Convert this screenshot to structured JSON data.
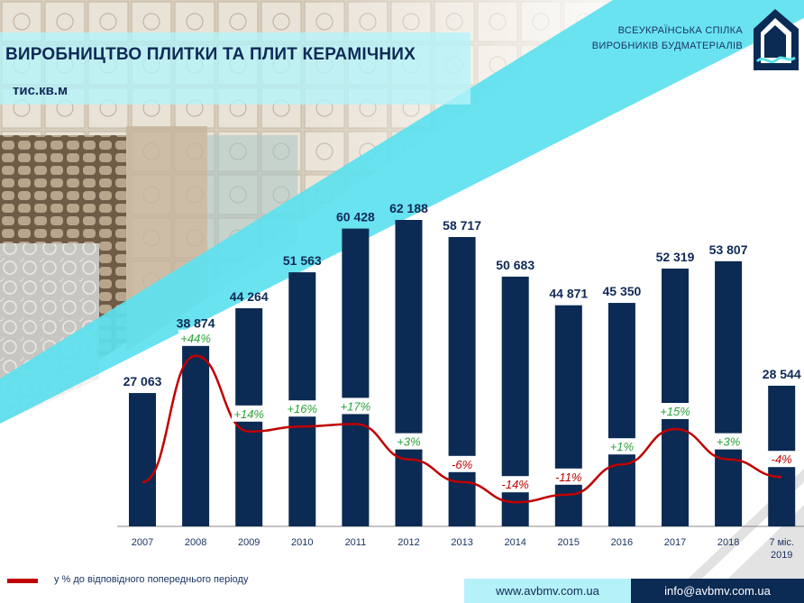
{
  "header": {
    "title": "ВИРОБНИЦТВО ПЛИТКИ ТА ПЛИТ КЕРАМІЧНИХ",
    "units": "тис.кв.м"
  },
  "organization": {
    "line1": "ВСЕУКРАЇНСЬКА СПІЛКА",
    "line2": "ВИРОБНИКІВ БУДМАТЕРІАЛІВ"
  },
  "legend": {
    "line_label": "у % до відповідного попереднього періоду"
  },
  "footer": {
    "website": "www.avbmv.com.ua",
    "email": "info@avbmv.com.ua"
  },
  "colors": {
    "bar": "#0b2a54",
    "line": "#c00000",
    "positive_label": "#2aa33a",
    "negative_label": "#c00000",
    "accent": "#5ce1ef"
  },
  "chart_data": {
    "type": "bar",
    "categories": [
      "2007",
      "2008",
      "2009",
      "2010",
      "2011",
      "2012",
      "2013",
      "2014",
      "2015",
      "2016",
      "2017",
      "2018",
      "7 міс.\n2019"
    ],
    "series": [
      {
        "values": [
          27063,
          38874,
          44264,
          51563,
          60428,
          62188,
          58717,
          50683,
          44871,
          45350,
          52319,
          53807,
          28544
        ],
        "value_labels": [
          "27 063",
          "38 874",
          "44 264",
          "51 563",
          "60 428",
          "62 188",
          "58 717",
          "50 683",
          "44 871",
          "45 350",
          "52 319",
          "53 807",
          "28 544"
        ]
      },
      {
        "name": "у % до відповідного попереднього періоду",
        "type": "line",
        "values": [
          null,
          44,
          14,
          16,
          17,
          3,
          -6,
          -14,
          -11,
          1,
          15,
          3,
          -4
        ],
        "value_labels": [
          "",
          "+44%",
          "+14%",
          "+16%",
          "+17%",
          "+3%",
          "-6%",
          "-14%",
          "-11%",
          "+1%",
          "+15%",
          "+3%",
          "-4%"
        ]
      }
    ],
    "ylim": [
      0,
      72000
    ],
    "grid": false,
    "legend_position": "bottom-left"
  }
}
